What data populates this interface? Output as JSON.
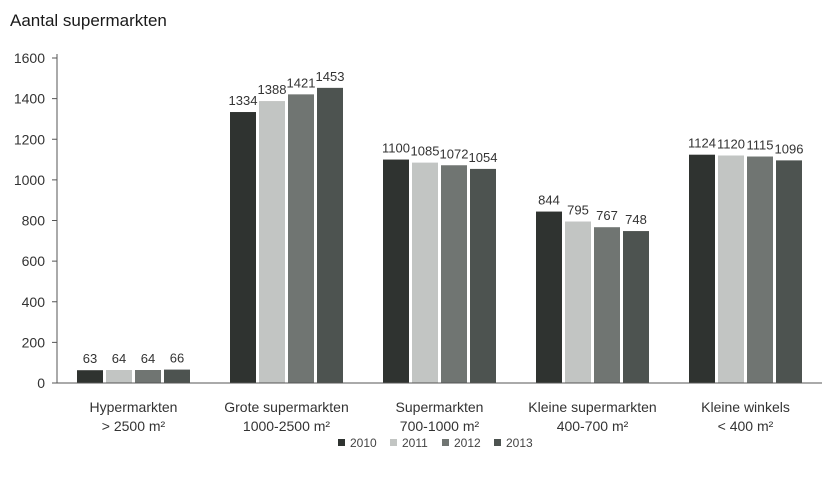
{
  "chart_data": {
    "type": "bar",
    "title": "Aantal supermarkten",
    "xlabel": "",
    "ylabel": "",
    "ylim": [
      0,
      1600
    ],
    "yticks": [
      0,
      200,
      400,
      600,
      800,
      1000,
      1200,
      1400,
      1600
    ],
    "grid": false,
    "legend_position": "bottom",
    "categories": [
      [
        "Hypermarkten",
        "> 2500 m²"
      ],
      [
        "Grote supermarkten",
        "1000-2500 m²"
      ],
      [
        "Supermarkten",
        "700-1000 m²"
      ],
      [
        "Kleine supermarkten",
        "400-700 m²"
      ],
      [
        "Kleine winkels",
        "< 400 m²"
      ]
    ],
    "series": [
      {
        "name": "2010",
        "color": "#2f3330",
        "values": [
          63,
          1334,
          1100,
          844,
          1124
        ]
      },
      {
        "name": "2011",
        "color": "#c2c5c3",
        "values": [
          64,
          1388,
          1085,
          795,
          1120
        ]
      },
      {
        "name": "2012",
        "color": "#707572",
        "values": [
          64,
          1421,
          1072,
          767,
          1115
        ]
      },
      {
        "name": "2013",
        "color": "#4d5350",
        "values": [
          66,
          1453,
          1054,
          748,
          1096
        ]
      }
    ]
  }
}
